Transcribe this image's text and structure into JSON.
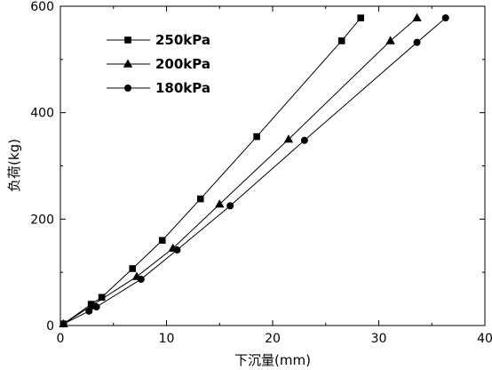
{
  "chart_data": {
    "type": "line",
    "title": "",
    "xlabel": "下沉量(mm)",
    "ylabel": "负荷(kg)",
    "xlim": [
      0,
      40
    ],
    "ylim": [
      0,
      600
    ],
    "xticks": [
      0,
      10,
      20,
      30,
      40
    ],
    "yticks": [
      0,
      200,
      400,
      600
    ],
    "grid": false,
    "legend_position": "top-left",
    "series": [
      {
        "name": "250kPa",
        "marker": "square",
        "x": [
          0.3,
          2.9,
          3.9,
          6.8,
          9.6,
          13.2,
          18.5,
          26.5,
          28.3
        ],
        "y": [
          3,
          40,
          53,
          107,
          160,
          238,
          355,
          535,
          578
        ]
      },
      {
        "name": "200kPa",
        "marker": "triangle",
        "x": [
          0.3,
          3.0,
          7.2,
          10.6,
          15.0,
          21.5,
          31.1,
          33.6
        ],
        "y": [
          3,
          38,
          92,
          145,
          228,
          350,
          535,
          578
        ]
      },
      {
        "name": "180kPa",
        "marker": "circle",
        "x": [
          0.3,
          2.7,
          3.4,
          7.6,
          11.0,
          16.0,
          23.0,
          33.6,
          36.3
        ],
        "y": [
          3,
          27,
          35,
          87,
          142,
          225,
          348,
          532,
          578
        ]
      }
    ]
  }
}
